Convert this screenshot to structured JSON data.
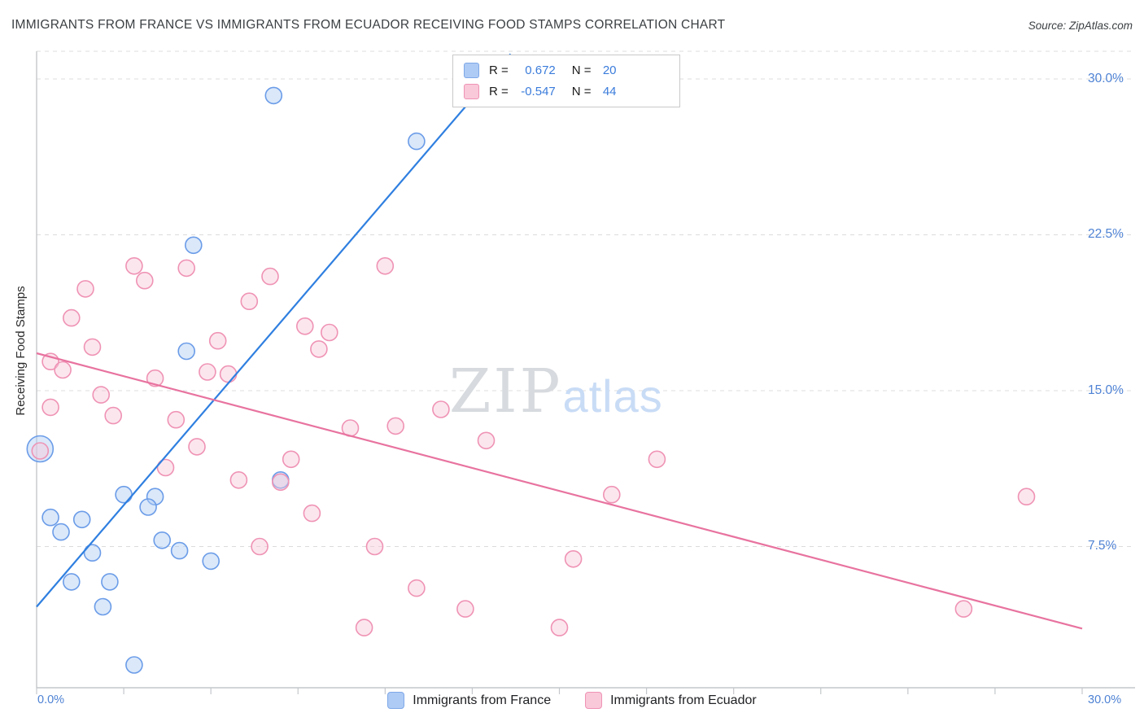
{
  "header": {
    "title": "IMMIGRANTS FROM FRANCE VS IMMIGRANTS FROM ECUADOR RECEIVING FOOD STAMPS CORRELATION CHART",
    "source": "Source: ZipAtlas.com"
  },
  "watermark": {
    "part1": "ZIP",
    "part2": "atlas"
  },
  "axes": {
    "y_label": "Receiving Food Stamps",
    "y_ticks": [
      "30.0%",
      "22.5%",
      "15.0%",
      "7.5%"
    ],
    "x_min_label": "0.0%",
    "x_max_label": "30.0%"
  },
  "legend_box": {
    "rows": [
      {
        "r_label": "R =",
        "r_value": "0.672",
        "n_label": "N =",
        "n_value": "20",
        "fill": "#aecbf5",
        "stroke": "#7fa8e8"
      },
      {
        "r_label": "R =",
        "r_value": "-0.547",
        "n_label": "N =",
        "n_value": "44",
        "fill": "#f9c8d9",
        "stroke": "#ef93b4"
      }
    ]
  },
  "bottom_legend": {
    "items": [
      {
        "label": "Immigrants from France",
        "fill": "#aecbf5",
        "stroke": "#7fa8e8"
      },
      {
        "label": "Immigrants from Ecuador",
        "fill": "#f9c8d9",
        "stroke": "#ef93b4"
      }
    ]
  },
  "chart_data": {
    "type": "scatter",
    "title": "IMMIGRANTS FROM FRANCE VS IMMIGRANTS FROM ECUADOR RECEIVING FOOD STAMPS CORRELATION CHART",
    "xlabel": "",
    "ylabel": "Receiving Food Stamps",
    "x_axis": {
      "min": 0,
      "max": 30,
      "unit": "%",
      "tick_step": 2.5
    },
    "y_axis": {
      "tick_values": [
        30,
        22.5,
        15,
        7.5
      ],
      "unit": "%"
    },
    "legend_position": "bottom",
    "grid": "horizontal-dashed",
    "series": [
      {
        "id": "france",
        "name": "Immigrants from France",
        "R": 0.672,
        "N": 20,
        "fill": "#aecbf5",
        "stroke": "#6b9ce8",
        "points": [
          [
            6.8,
            29.2
          ],
          [
            10.9,
            27.0
          ],
          [
            4.5,
            22.0
          ],
          [
            4.3,
            16.9
          ],
          [
            0.1,
            12.2,
            16
          ],
          [
            2.5,
            10.0
          ],
          [
            3.4,
            9.9
          ],
          [
            3.2,
            9.4
          ],
          [
            7.0,
            10.7
          ],
          [
            0.4,
            8.9
          ],
          [
            1.3,
            8.8
          ],
          [
            0.7,
            8.2
          ],
          [
            1.6,
            7.2
          ],
          [
            4.1,
            7.3
          ],
          [
            3.6,
            7.8
          ],
          [
            5.0,
            6.8
          ],
          [
            1.0,
            5.8
          ],
          [
            2.1,
            5.8
          ],
          [
            1.9,
            4.6
          ],
          [
            2.8,
            1.8
          ]
        ]
      },
      {
        "id": "ecuador",
        "name": "Immigrants from Ecuador",
        "R": -0.547,
        "N": 44,
        "fill": "#f9c8d9",
        "stroke": "#ef93b4",
        "points": [
          [
            2.8,
            21.0
          ],
          [
            4.3,
            20.9
          ],
          [
            3.1,
            20.3
          ],
          [
            10.0,
            21.0
          ],
          [
            6.7,
            20.5
          ],
          [
            1.4,
            19.9
          ],
          [
            6.1,
            19.3
          ],
          [
            1.0,
            18.5
          ],
          [
            7.7,
            18.1
          ],
          [
            8.4,
            17.8
          ],
          [
            1.6,
            17.1
          ],
          [
            8.1,
            17.0
          ],
          [
            5.2,
            17.4
          ],
          [
            0.4,
            16.4
          ],
          [
            0.75,
            16.0
          ],
          [
            4.9,
            15.9
          ],
          [
            5.5,
            15.8
          ],
          [
            3.4,
            15.6
          ],
          [
            1.85,
            14.8
          ],
          [
            0.4,
            14.2
          ],
          [
            2.2,
            13.8
          ],
          [
            11.6,
            14.1
          ],
          [
            4.0,
            13.6
          ],
          [
            9.0,
            13.2
          ],
          [
            10.3,
            13.3
          ],
          [
            12.9,
            12.6
          ],
          [
            4.6,
            12.3
          ],
          [
            0.1,
            12.1
          ],
          [
            17.8,
            11.7
          ],
          [
            7.3,
            11.7
          ],
          [
            3.7,
            11.3
          ],
          [
            5.8,
            10.7
          ],
          [
            7.0,
            10.6
          ],
          [
            16.5,
            10.0
          ],
          [
            28.4,
            9.9
          ],
          [
            7.9,
            9.1
          ],
          [
            6.4,
            7.5
          ],
          [
            9.7,
            7.5
          ],
          [
            15.4,
            6.9
          ],
          [
            10.9,
            5.5
          ],
          [
            12.3,
            4.5
          ],
          [
            26.6,
            4.5
          ],
          [
            9.4,
            3.6
          ],
          [
            15.0,
            3.6
          ]
        ]
      }
    ],
    "trend_lines": [
      {
        "series": "france",
        "color": "#2f7fe0",
        "points": [
          [
            0,
            4.6
          ],
          [
            13.6,
            31.2
          ]
        ]
      },
      {
        "series": "ecuador",
        "color": "#e8739f",
        "points": [
          [
            0,
            16.8
          ],
          [
            30,
            3.55
          ]
        ]
      }
    ]
  }
}
